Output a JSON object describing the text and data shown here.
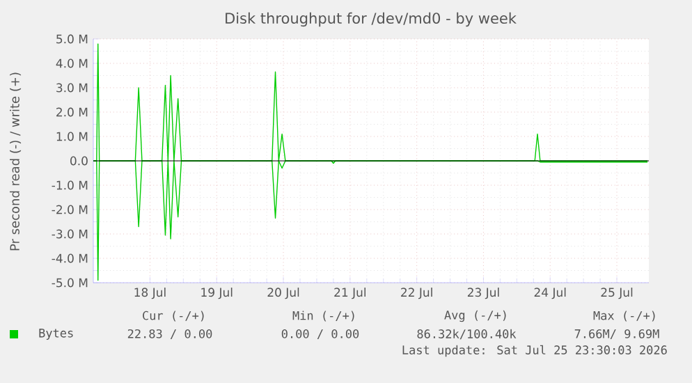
{
  "chart_data": {
    "type": "line",
    "title": "Disk throughput for /dev/md0 - by week",
    "ylabel": "Pr second read (-) / write (+)",
    "x": [
      "2026-07-17T15:36",
      "2026-07-17T16:48",
      "2026-07-17T17:17",
      "2026-07-17T17:46",
      "2026-07-17T19:12",
      "2026-07-18T06:43",
      "2026-07-18T07:55",
      "2026-07-18T09:07",
      "2026-07-18T16:19",
      "2026-07-18T17:31",
      "2026-07-18T18:29",
      "2026-07-18T19:26",
      "2026-07-18T20:38",
      "2026-07-18T22:05",
      "2026-07-18T23:17",
      "2026-07-20T07:55",
      "2026-07-20T09:07",
      "2026-07-20T10:19",
      "2026-07-20T11:31",
      "2026-07-20T12:43",
      "2026-07-21T05:17",
      "2026-07-21T06:00",
      "2026-07-21T06:43",
      "2026-07-24T06:29",
      "2026-07-24T07:26",
      "2026-07-24T08:24",
      "2026-07-25T23:02"
    ],
    "series": [
      {
        "name": "Bytes",
        "color": "#00cc00",
        "values": [
          0,
          0,
          4.8,
          0,
          0,
          0,
          3.0,
          0,
          0,
          3.1,
          0,
          3.5,
          0,
          2.55,
          0,
          0,
          3.65,
          0,
          1.1,
          0,
          0,
          0,
          0,
          0,
          1.1,
          0,
          0
        ]
      },
      {
        "color": "#00cc00",
        "values": [
          0,
          0,
          -4.9,
          0,
          0,
          0,
          -2.7,
          0,
          0,
          -3.05,
          0,
          -3.2,
          0,
          -2.3,
          0,
          0,
          -2.35,
          0,
          -0.3,
          0,
          0,
          -0.1,
          0,
          0,
          0,
          -0.05,
          -0.05
        ]
      }
    ],
    "xlim": [
      "2026-07-17T15:36",
      "2026-07-25T23:31"
    ],
    "xticks": [
      {
        "value": "2026-07-18T12:00",
        "label": "18 Jul"
      },
      {
        "value": "2026-07-19T12:00",
        "label": "19 Jul"
      },
      {
        "value": "2026-07-20T12:00",
        "label": "20 Jul"
      },
      {
        "value": "2026-07-21T12:00",
        "label": "21 Jul"
      },
      {
        "value": "2026-07-22T12:00",
        "label": "22 Jul"
      },
      {
        "value": "2026-07-23T12:00",
        "label": "23 Jul"
      },
      {
        "value": "2026-07-24T12:00",
        "label": "24 Jul"
      },
      {
        "value": "2026-07-25T12:00",
        "label": "25 Jul"
      }
    ],
    "ylim": [
      -5,
      5
    ],
    "yticks": [
      {
        "value": -5,
        "label": "-5.0 M"
      },
      {
        "value": -4,
        "label": "-4.0 M"
      },
      {
        "value": -3,
        "label": "-3.0 M"
      },
      {
        "value": -2,
        "label": "-2.0 M"
      },
      {
        "value": -1,
        "label": "-1.0 M"
      },
      {
        "value": 0,
        "label": "0.0"
      },
      {
        "value": 1,
        "label": "1.0 M"
      },
      {
        "value": 2,
        "label": "2.0 M"
      },
      {
        "value": 3,
        "label": "3.0 M"
      },
      {
        "value": 4,
        "label": "4.0 M"
      },
      {
        "value": 5,
        "label": "5.0 M"
      }
    ],
    "ref_lines": [
      {
        "axis": "y",
        "value": 0,
        "color": "#000000"
      }
    ],
    "grid": true,
    "legend": "bottom",
    "annotations": [
      "Cur (-/+)",
      "Min (-/+)",
      "Avg (-/+)",
      "Max (-/+)",
      "22.83 /  0.00",
      "0.00 /  0.00",
      "86.32k/100.40k",
      "7.66M/  9.69M",
      "Last update: Sat Jul 25 23:30:03 2026"
    ]
  }
}
